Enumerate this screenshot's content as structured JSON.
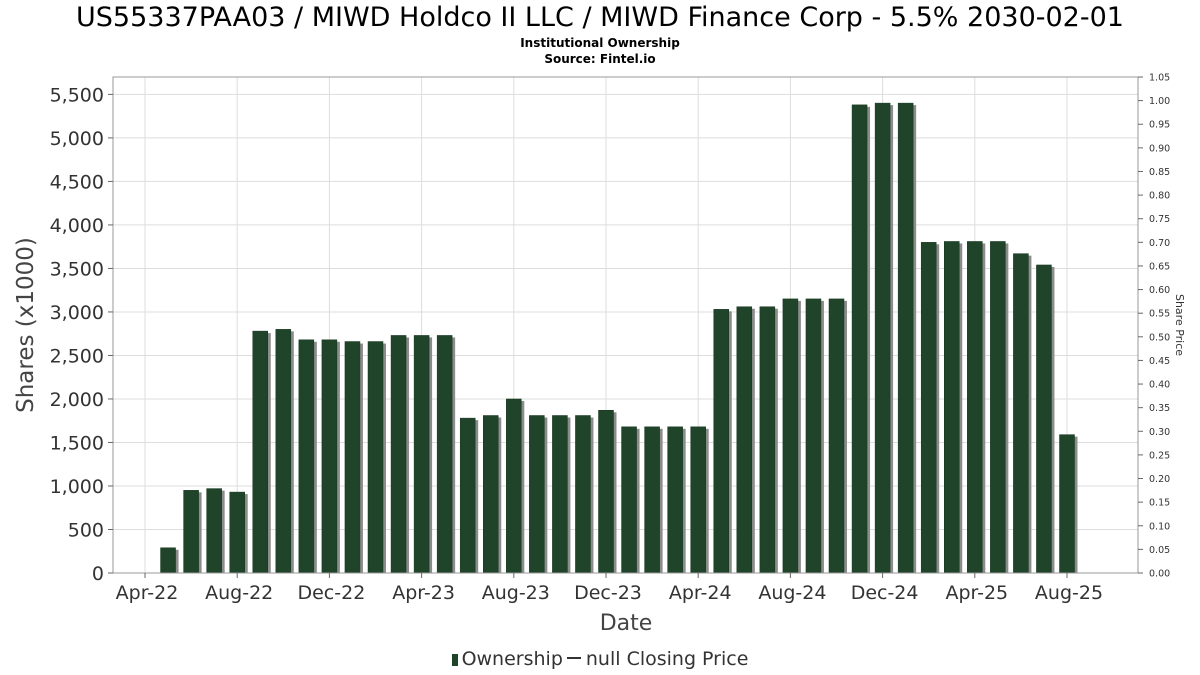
{
  "header": {
    "title": "US55337PAA03 / MIWD Holdco II LLC / MIWD Finance Corp - 5.5% 2030-02-01",
    "subtitle1": "Institutional Ownership",
    "subtitle2": "Source: Fintel.io"
  },
  "legend": {
    "ownership": "Ownership",
    "price": "null Closing Price"
  },
  "colors": {
    "bar": "#1f4429",
    "bar_shadow": "#8c8c8c",
    "grid": "#dddddd"
  },
  "chart_data": {
    "type": "bar",
    "xlabel": "Date",
    "ylabel": "Shares (x1000)",
    "y2label": "Share Price",
    "ylim": [
      0,
      5700
    ],
    "y2lim": [
      0,
      1.05
    ],
    "x_ticks": [
      "Apr-22",
      "Aug-22",
      "Dec-22",
      "Apr-23",
      "Aug-23",
      "Dec-23",
      "Apr-24",
      "Aug-24",
      "Dec-24",
      "Apr-25",
      "Aug-25"
    ],
    "y_ticks": [
      "0",
      "500",
      "1,000",
      "1,500",
      "2,000",
      "2,500",
      "3,000",
      "3,500",
      "4,000",
      "4,500",
      "5,000",
      "5,500"
    ],
    "y2_ticks": [
      "0.00",
      "0.05",
      "0.10",
      "0.15",
      "0.20",
      "0.25",
      "0.30",
      "0.35",
      "0.40",
      "0.45",
      "0.50",
      "0.55",
      "0.60",
      "0.65",
      "0.70",
      "0.75",
      "0.80",
      "0.85",
      "0.90",
      "0.95",
      "1.00",
      "1.05"
    ],
    "grid": true,
    "legend_position": "bottom",
    "series": [
      {
        "name": "Ownership",
        "values": [
          0,
          290,
          950,
          970,
          930,
          2780,
          2800,
          2680,
          2680,
          2660,
          2660,
          2730,
          2730,
          2730,
          1780,
          1810,
          2000,
          1810,
          1810,
          1810,
          1870,
          1680,
          1680,
          1680,
          1680,
          3030,
          3060,
          3060,
          3150,
          3150,
          3150,
          5380,
          5400,
          5400,
          3800,
          3810,
          3810,
          3810,
          3670,
          3540,
          1590
        ]
      }
    ]
  }
}
